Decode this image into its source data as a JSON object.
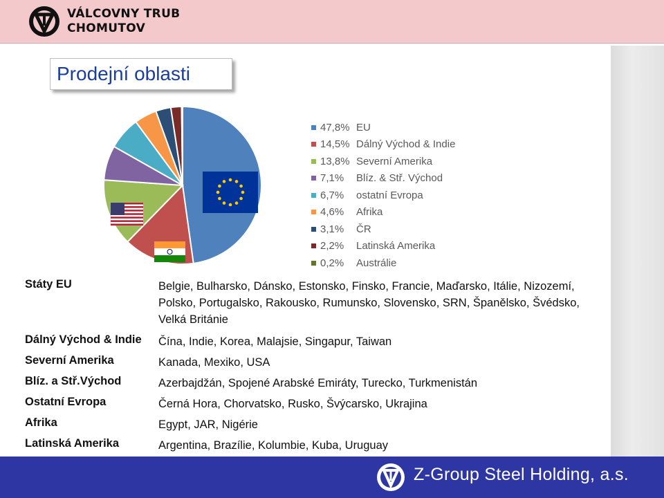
{
  "header": {
    "company_line1": "VÁLCOVNY TRUB",
    "company_line2": "CHOMUTOV"
  },
  "page_title": "Prodejní oblasti",
  "chart_data": {
    "type": "pie",
    "slices": [
      {
        "value_label": "47,8%",
        "name": "EU",
        "value": 47.8,
        "color": "#4f81bd"
      },
      {
        "value_label": "14,5%",
        "name": "Dálný Východ & Indie",
        "value": 14.5,
        "color": "#c0504d"
      },
      {
        "value_label": "13,8%",
        "name": "Severní Amerika",
        "value": 13.8,
        "color": "#9bbb59"
      },
      {
        "value_label": "7,1%",
        "name": "Blíz. & Stř. Východ",
        "value": 7.1,
        "color": "#8064a2"
      },
      {
        "value_label": "6,7%",
        "name": "ostatní Evropa",
        "value": 6.7,
        "color": "#4bacc6"
      },
      {
        "value_label": "4,6%",
        "name": "Afrika",
        "value": 4.6,
        "color": "#f79646"
      },
      {
        "value_label": "3,1%",
        "name": "ČR",
        "value": 3.1,
        "color": "#2c4d75"
      },
      {
        "value_label": "2,2%",
        "name": "Latinská Amerika",
        "value": 2.2,
        "color": "#772c2a"
      },
      {
        "value_label": "0,2%",
        "name": "Austrálie",
        "value": 0.2,
        "color": "#5f7530"
      }
    ],
    "legend_position": "right",
    "flags": [
      "eu-flag",
      "usa-flag",
      "india-flag"
    ]
  },
  "regions": [
    {
      "name": "Státy EU",
      "countries": "Belgie, Bulharsko, Dánsko, Estonsko, Finsko, Francie, Maďarsko, Itálie, Nizozemí, Polsko, Portugalsko, Rakousko, Rumunsko, Slovensko, SRN, Španělsko, Švédsko, Velká Británie"
    },
    {
      "name": "Dálný Východ & Indie",
      "countries": "Čína, Indie, Korea, Malajsie, Singapur, Taiwan"
    },
    {
      "name": "Severní Amerika",
      "countries": "Kanada, Mexiko, USA"
    },
    {
      "name": "Blíz. a Stř.Východ",
      "countries": "Azerbajdžán, Spojené Arabské Emiráty, Turecko, Turkmenistán"
    },
    {
      "name": "Ostatní Evropa",
      "countries": "Černá Hora, Chorvatsko, Rusko, Švýcarsko, Ukrajina"
    },
    {
      "name": "Afrika",
      "countries": "Egypt, JAR, Nigérie"
    },
    {
      "name": "Latinská Amerika",
      "countries": "Argentina, Brazílie, Kolumbie, Kuba, Uruguay"
    }
  ],
  "footer": {
    "text": "Z-Group Steel Holding, a.s."
  }
}
